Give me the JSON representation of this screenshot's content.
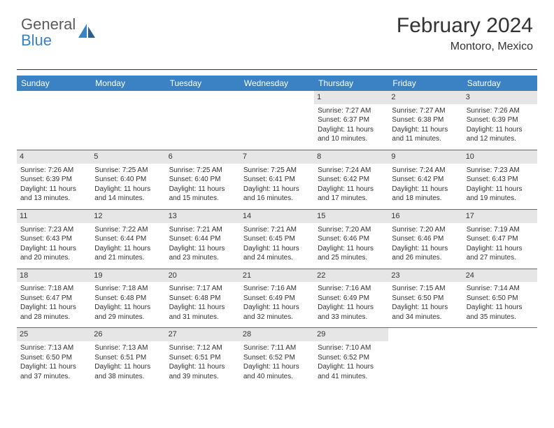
{
  "logo": {
    "part1": "General",
    "part2": "Blue",
    "color1": "#5a5a5a",
    "color2": "#3b82c4"
  },
  "header": {
    "title": "February 2024",
    "location": "Montoro, Mexico"
  },
  "style": {
    "header_bg": "#3b82c4",
    "header_fg": "#ffffff",
    "daynum_bg": "#e6e6e6",
    "border_color": "#666666",
    "font_family": "Arial",
    "title_fontsize": 30,
    "location_fontsize": 16,
    "th_fontsize": 12,
    "cell_fontsize": 10
  },
  "dayNames": [
    "Sunday",
    "Monday",
    "Tuesday",
    "Wednesday",
    "Thursday",
    "Friday",
    "Saturday"
  ],
  "weeks": [
    [
      null,
      null,
      null,
      null,
      {
        "n": "1",
        "sr": "7:27 AM",
        "ss": "6:37 PM",
        "dl": "11 hours and 10 minutes."
      },
      {
        "n": "2",
        "sr": "7:27 AM",
        "ss": "6:38 PM",
        "dl": "11 hours and 11 minutes."
      },
      {
        "n": "3",
        "sr": "7:26 AM",
        "ss": "6:39 PM",
        "dl": "11 hours and 12 minutes."
      }
    ],
    [
      {
        "n": "4",
        "sr": "7:26 AM",
        "ss": "6:39 PM",
        "dl": "11 hours and 13 minutes."
      },
      {
        "n": "5",
        "sr": "7:25 AM",
        "ss": "6:40 PM",
        "dl": "11 hours and 14 minutes."
      },
      {
        "n": "6",
        "sr": "7:25 AM",
        "ss": "6:40 PM",
        "dl": "11 hours and 15 minutes."
      },
      {
        "n": "7",
        "sr": "7:25 AM",
        "ss": "6:41 PM",
        "dl": "11 hours and 16 minutes."
      },
      {
        "n": "8",
        "sr": "7:24 AM",
        "ss": "6:42 PM",
        "dl": "11 hours and 17 minutes."
      },
      {
        "n": "9",
        "sr": "7:24 AM",
        "ss": "6:42 PM",
        "dl": "11 hours and 18 minutes."
      },
      {
        "n": "10",
        "sr": "7:23 AM",
        "ss": "6:43 PM",
        "dl": "11 hours and 19 minutes."
      }
    ],
    [
      {
        "n": "11",
        "sr": "7:23 AM",
        "ss": "6:43 PM",
        "dl": "11 hours and 20 minutes."
      },
      {
        "n": "12",
        "sr": "7:22 AM",
        "ss": "6:44 PM",
        "dl": "11 hours and 21 minutes."
      },
      {
        "n": "13",
        "sr": "7:21 AM",
        "ss": "6:44 PM",
        "dl": "11 hours and 23 minutes."
      },
      {
        "n": "14",
        "sr": "7:21 AM",
        "ss": "6:45 PM",
        "dl": "11 hours and 24 minutes."
      },
      {
        "n": "15",
        "sr": "7:20 AM",
        "ss": "6:46 PM",
        "dl": "11 hours and 25 minutes."
      },
      {
        "n": "16",
        "sr": "7:20 AM",
        "ss": "6:46 PM",
        "dl": "11 hours and 26 minutes."
      },
      {
        "n": "17",
        "sr": "7:19 AM",
        "ss": "6:47 PM",
        "dl": "11 hours and 27 minutes."
      }
    ],
    [
      {
        "n": "18",
        "sr": "7:18 AM",
        "ss": "6:47 PM",
        "dl": "11 hours and 28 minutes."
      },
      {
        "n": "19",
        "sr": "7:18 AM",
        "ss": "6:48 PM",
        "dl": "11 hours and 29 minutes."
      },
      {
        "n": "20",
        "sr": "7:17 AM",
        "ss": "6:48 PM",
        "dl": "11 hours and 31 minutes."
      },
      {
        "n": "21",
        "sr": "7:16 AM",
        "ss": "6:49 PM",
        "dl": "11 hours and 32 minutes."
      },
      {
        "n": "22",
        "sr": "7:16 AM",
        "ss": "6:49 PM",
        "dl": "11 hours and 33 minutes."
      },
      {
        "n": "23",
        "sr": "7:15 AM",
        "ss": "6:50 PM",
        "dl": "11 hours and 34 minutes."
      },
      {
        "n": "24",
        "sr": "7:14 AM",
        "ss": "6:50 PM",
        "dl": "11 hours and 35 minutes."
      }
    ],
    [
      {
        "n": "25",
        "sr": "7:13 AM",
        "ss": "6:50 PM",
        "dl": "11 hours and 37 minutes."
      },
      {
        "n": "26",
        "sr": "7:13 AM",
        "ss": "6:51 PM",
        "dl": "11 hours and 38 minutes."
      },
      {
        "n": "27",
        "sr": "7:12 AM",
        "ss": "6:51 PM",
        "dl": "11 hours and 39 minutes."
      },
      {
        "n": "28",
        "sr": "7:11 AM",
        "ss": "6:52 PM",
        "dl": "11 hours and 40 minutes."
      },
      {
        "n": "29",
        "sr": "7:10 AM",
        "ss": "6:52 PM",
        "dl": "11 hours and 41 minutes."
      },
      null,
      null
    ]
  ],
  "labels": {
    "sunrise": "Sunrise:",
    "sunset": "Sunset:",
    "daylight": "Daylight:"
  }
}
